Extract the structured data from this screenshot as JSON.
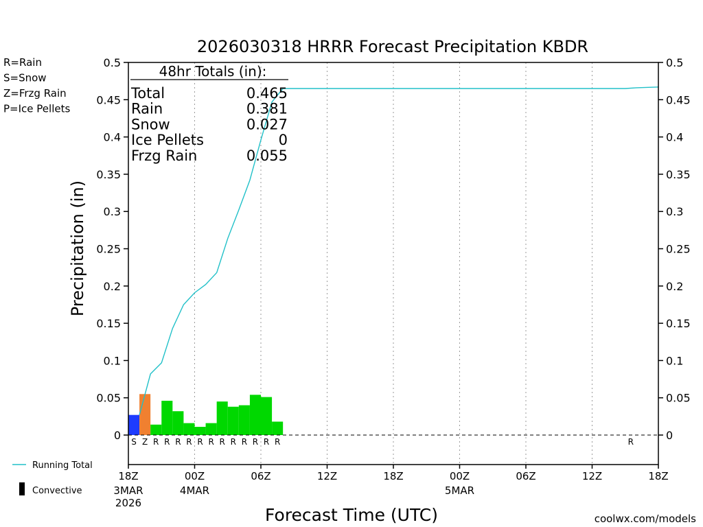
{
  "chart_data": {
    "type": "bar",
    "title": "2026030318 HRRR Forecast Precipitation KBDR",
    "xlabel": "Forecast Time (UTC)",
    "ylabel": "Precipitation (in)",
    "ylim": [
      0,
      0.5
    ],
    "xlim_hours": [
      0,
      48
    ],
    "y_ticks": [
      "0",
      "0.05",
      "0.1",
      "0.15",
      "0.2",
      "0.25",
      "0.3",
      "0.35",
      "0.4",
      "0.45",
      "0.5"
    ],
    "x_ticks": [
      {
        "hour": 0,
        "label": "18Z",
        "sub": [
          "3MAR",
          "2026"
        ]
      },
      {
        "hour": 6,
        "label": "00Z",
        "sub": [
          "4MAR"
        ]
      },
      {
        "hour": 12,
        "label": "06Z",
        "sub": []
      },
      {
        "hour": 18,
        "label": "12Z",
        "sub": []
      },
      {
        "hour": 24,
        "label": "18Z",
        "sub": []
      },
      {
        "hour": 30,
        "label": "00Z",
        "sub": [
          "5MAR"
        ]
      },
      {
        "hour": 36,
        "label": "06Z",
        "sub": []
      },
      {
        "hour": 42,
        "label": "12Z",
        "sub": []
      },
      {
        "hour": 48,
        "label": "18Z",
        "sub": []
      }
    ],
    "bars": [
      {
        "hour": 1,
        "value": 0.027,
        "type": "S"
      },
      {
        "hour": 2,
        "value": 0.055,
        "type": "Z"
      },
      {
        "hour": 3,
        "value": 0.014,
        "type": "R"
      },
      {
        "hour": 4,
        "value": 0.046,
        "type": "R"
      },
      {
        "hour": 5,
        "value": 0.032,
        "type": "R"
      },
      {
        "hour": 6,
        "value": 0.016,
        "type": "R"
      },
      {
        "hour": 7,
        "value": 0.011,
        "type": "R"
      },
      {
        "hour": 8,
        "value": 0.016,
        "type": "R"
      },
      {
        "hour": 9,
        "value": 0.045,
        "type": "R"
      },
      {
        "hour": 10,
        "value": 0.038,
        "type": "R"
      },
      {
        "hour": 11,
        "value": 0.04,
        "type": "R"
      },
      {
        "hour": 12,
        "value": 0.054,
        "type": "R"
      },
      {
        "hour": 13,
        "value": 0.051,
        "type": "R"
      },
      {
        "hour": 14,
        "value": 0.018,
        "type": "R"
      }
    ],
    "extra_type_markers": [
      {
        "hour": 46,
        "type": "R"
      }
    ],
    "running_total": {
      "name": "Running Total",
      "x": [
        1,
        2,
        3,
        4,
        5,
        6,
        7,
        8,
        9,
        10,
        11,
        12,
        13,
        14,
        15,
        20,
        30,
        40,
        45,
        46,
        48
      ],
      "y": [
        0.027,
        0.082,
        0.097,
        0.143,
        0.175,
        0.191,
        0.202,
        0.218,
        0.264,
        0.302,
        0.342,
        0.396,
        0.447,
        0.465,
        0.465,
        0.465,
        0.465,
        0.465,
        0.465,
        0.466,
        0.467
      ]
    },
    "totals_box": {
      "title": "48hr Totals (in):",
      "rows": [
        {
          "label": "Total",
          "value": "0.465"
        },
        {
          "label": "Rain",
          "value": "0.381"
        },
        {
          "label": "Snow",
          "value": "0.027"
        },
        {
          "label": "Ice Pellets",
          "value": "0"
        },
        {
          "label": "Frzg Rain",
          "value": "0.055"
        }
      ]
    },
    "type_legend": [
      {
        "code": "R",
        "text": "R=Rain",
        "color": "#22cc22"
      },
      {
        "code": "S",
        "text": "S=Snow",
        "color": "#3344ee"
      },
      {
        "code": "Z",
        "text": "Z=Frzg Rain",
        "color": "#f08030"
      },
      {
        "code": "P",
        "text": "P=Ice Pellets",
        "color": "#e0208a"
      }
    ],
    "bar_colors": {
      "R": "#00d800",
      "S": "#1e3cff",
      "Z": "#f08030",
      "P": "#e0208a"
    },
    "line_color": "#20c0c8",
    "bottom_legend": {
      "running_total": "Running Total",
      "convective": "Convective"
    },
    "credit": "coolwx.com/models",
    "credit_color": "#d02020"
  }
}
